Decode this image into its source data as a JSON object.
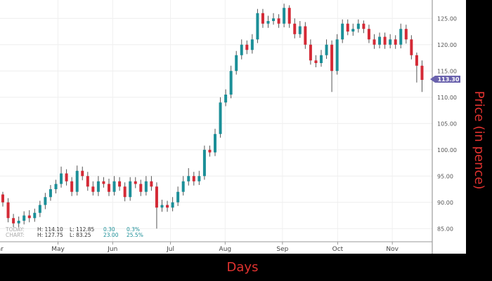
{
  "chart_data": {
    "type": "candlestick",
    "xlabel": "Days",
    "ylabel": "Price (in pence)",
    "ylim": [
      82.5,
      128.5
    ],
    "yticks": [
      "85.00",
      "90.00",
      "95.00",
      "100.00",
      "105.00",
      "110.00",
      "115.00",
      "120.00",
      "125.00"
    ],
    "ytick_values": [
      85,
      90,
      95,
      100,
      105,
      110,
      115,
      120,
      125
    ],
    "xticks": [
      {
        "label": "Mar",
        "index": -1
      },
      {
        "label": "May",
        "index": 10.4
      },
      {
        "label": "Jun",
        "index": 20.7
      },
      {
        "label": "Jul",
        "index": 31.6
      },
      {
        "label": "Aug",
        "index": 41.9
      },
      {
        "label": "Sep",
        "index": 52.7
      },
      {
        "label": "Oct",
        "index": 63.1
      },
      {
        "label": "Nov",
        "index": 73.4
      }
    ],
    "grid": true,
    "up_color": "#1b8f98",
    "down_color": "#d42a36",
    "last_price": "113.30",
    "last_price_color": "#6a62ad",
    "open": [
      91.5,
      90,
      87,
      86,
      86.5,
      87.5,
      87,
      88,
      89.5,
      91,
      92.5,
      93.5,
      95.5,
      94,
      92,
      96,
      95,
      93,
      92,
      94,
      93.5,
      92,
      94,
      93,
      91,
      94,
      93.5,
      92,
      94,
      93,
      89,
      89.5,
      89,
      90,
      92,
      94,
      95,
      94,
      95,
      100,
      99.5,
      103,
      109,
      110.5,
      115,
      118,
      120,
      119,
      121,
      126,
      124,
      124.5,
      125,
      124,
      127,
      124,
      122,
      123.5,
      120,
      117,
      116.5,
      118,
      120,
      115,
      121,
      124,
      122.5,
      123,
      124,
      123,
      121,
      120,
      121.5,
      120,
      121,
      120,
      123,
      121,
      118,
      116
    ],
    "high": [
      92,
      90.8,
      87.8,
      87.3,
      88.3,
      88.5,
      88.8,
      90.3,
      91.8,
      93.3,
      94.3,
      96.8,
      96.3,
      94.8,
      97,
      96.8,
      95.8,
      94,
      95,
      94.8,
      94.5,
      95,
      94.8,
      93.8,
      94.8,
      94.8,
      94.3,
      95,
      95,
      93.8,
      90.5,
      90.3,
      91,
      93,
      95,
      96.5,
      95.8,
      96,
      100.8,
      100.8,
      104,
      110,
      111.5,
      116,
      118.8,
      121,
      120.8,
      122,
      126.8,
      126.8,
      125.5,
      126,
      125.8,
      127.8,
      127.5,
      125,
      124.5,
      124.3,
      121,
      118,
      119,
      121,
      120.8,
      122,
      124.8,
      124.8,
      124,
      124.8,
      124.6,
      123.8,
      122,
      122.3,
      122.3,
      122,
      121.8,
      124,
      123.8,
      121.8,
      118.5,
      117
    ],
    "low": [
      89.2,
      86.2,
      85.3,
      85.3,
      85.8,
      86.2,
      86.3,
      87.2,
      88.7,
      90.3,
      91.7,
      92.8,
      93.2,
      91.2,
      91.3,
      94.2,
      92.2,
      91.3,
      91.2,
      92.8,
      91.2,
      91.3,
      92.2,
      90.2,
      90.3,
      92.7,
      91.2,
      91.3,
      92.2,
      85,
      88.2,
      88.2,
      88.3,
      89.3,
      91.3,
      93.2,
      93.2,
      93.3,
      94.3,
      98.7,
      98.8,
      102.3,
      108.3,
      109.8,
      114.3,
      117.2,
      118.2,
      118.3,
      120.3,
      123.2,
      123.2,
      123.8,
      123.2,
      123.3,
      123.2,
      121.2,
      121.3,
      119.2,
      116.2,
      115.7,
      115.8,
      117.3,
      111,
      114.3,
      120.3,
      121.8,
      121.7,
      122.3,
      122.2,
      120.3,
      119.2,
      119.3,
      119.2,
      119.3,
      119.2,
      119.3,
      120.2,
      117.2,
      112.8,
      111
    ],
    "close": [
      90,
      87,
      86,
      86.5,
      87.5,
      87,
      88,
      89.5,
      91,
      92.5,
      93.5,
      95.5,
      94,
      92,
      96,
      95,
      93,
      92,
      94,
      93.5,
      92,
      94,
      93,
      91,
      94,
      93.5,
      92,
      94,
      93,
      89,
      89.5,
      89,
      90,
      92,
      94,
      95,
      94,
      95,
      100,
      99.5,
      103,
      109,
      110.5,
      115,
      118,
      120,
      119,
      121,
      126,
      124,
      124.5,
      125,
      124,
      127,
      124,
      122,
      123.5,
      120,
      117,
      116.5,
      118,
      120,
      115,
      121,
      124,
      122.5,
      123,
      124,
      123,
      121,
      120,
      121.5,
      120,
      121,
      120,
      123,
      121,
      118,
      116,
      113.3
    ]
  },
  "info": {
    "today": {
      "label": "TODAY:",
      "high": "H: 114.10",
      "low": "L: 112.85",
      "change": "0.30",
      "pct": "0.3%"
    },
    "chart": {
      "label": "CHART:",
      "high": "H: 127.75",
      "low": "L: 83.25",
      "change": "23.00",
      "pct": "25.5%"
    }
  }
}
